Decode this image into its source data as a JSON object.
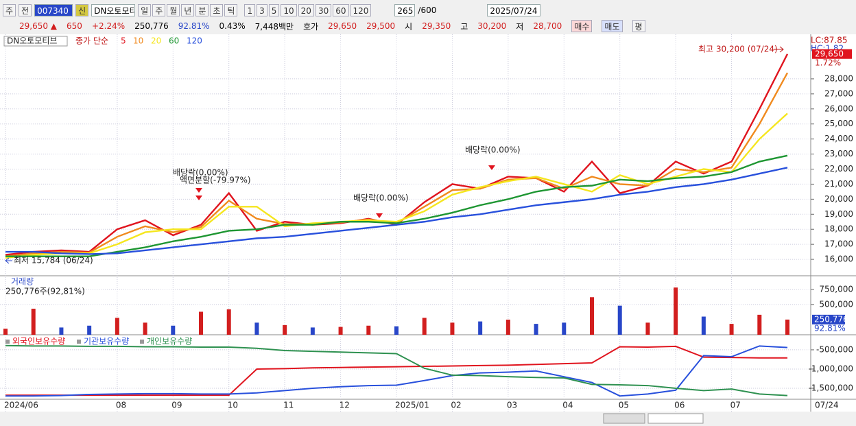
{
  "toolbar": {
    "market": "주",
    "range": "전",
    "code": "007340",
    "credit": "신",
    "name": "DN오토모티",
    "periods": [
      "일",
      "주",
      "월",
      "년",
      "분",
      "초",
      "틱"
    ],
    "intervals": [
      "1",
      "3",
      "5",
      "10",
      "20",
      "30",
      "60",
      "120"
    ],
    "count": "265",
    "max": "/600",
    "date": "2025/07/24"
  },
  "info": {
    "price": "29,650 ▲",
    "change": "650",
    "rate": "+2.24%",
    "volume": "250,776",
    "vol_ratio": "92.81%",
    "turnover": "0.43%",
    "amount": "7,448백만",
    "quote_label": "호가",
    "ask": "29,650",
    "bid": "29,500",
    "open_label": "시",
    "open": "29,350",
    "high_label": "고",
    "high": "30,200",
    "low_label": "저",
    "low": "28,700",
    "buy": "매수",
    "sell": "매도",
    "avg": "평"
  },
  "chart_data": [
    {
      "type": "line",
      "title": "DN오토모티브",
      "legend_title": "종가 단순",
      "categories": [
        "2024/06",
        null,
        null,
        null,
        "08",
        null,
        "09",
        null,
        "10",
        null,
        "11",
        null,
        "12",
        null,
        "2025/01",
        null,
        "02",
        null,
        "03",
        null,
        "04",
        null,
        "05",
        null,
        "06",
        null,
        "07",
        null,
        null
      ],
      "end_label": "07/24",
      "series": [
        {
          "name": "5",
          "color": "#e0141e",
          "values": [
            16300,
            16500,
            16600,
            16500,
            18000,
            18600,
            17600,
            18300,
            20400,
            17900,
            18500,
            18300,
            18400,
            18700,
            18300,
            19800,
            21000,
            20700,
            21500,
            21400,
            20500,
            22500,
            20400,
            20900,
            22500,
            21700,
            22500,
            26000,
            29650
          ]
        },
        {
          "name": "10",
          "color": "#f08a1e",
          "values": [
            16200,
            16400,
            16500,
            16450,
            17500,
            18200,
            17800,
            18150,
            19900,
            18700,
            18350,
            18350,
            18450,
            18650,
            18400,
            19500,
            20600,
            20700,
            21300,
            21400,
            20700,
            21500,
            21000,
            20900,
            22000,
            21800,
            22100,
            25000,
            28400
          ]
        },
        {
          "name": "20",
          "color": "#f5e61e",
          "values": [
            16100,
            16300,
            16400,
            16400,
            17000,
            17800,
            18000,
            18000,
            19500,
            19500,
            18200,
            18400,
            18500,
            18600,
            18500,
            19200,
            20300,
            20800,
            21200,
            21500,
            21000,
            20500,
            21600,
            21000,
            21500,
            22000,
            21800,
            24000,
            25700
          ]
        },
        {
          "name": "60",
          "color": "#1e9632",
          "values": [
            16200,
            16200,
            16200,
            16200,
            16500,
            16800,
            17200,
            17500,
            17900,
            18000,
            18300,
            18300,
            18500,
            18500,
            18400,
            18700,
            19100,
            19600,
            20000,
            20500,
            20800,
            20900,
            21300,
            21200,
            21400,
            21500,
            21800,
            22500,
            22900
          ]
        },
        {
          "name": "120",
          "color": "#2850dc",
          "values": [
            16500,
            16500,
            16400,
            16350,
            16400,
            16600,
            16800,
            17000,
            17200,
            17400,
            17500,
            17700,
            17900,
            18100,
            18300,
            18500,
            18800,
            19000,
            19300,
            19600,
            19800,
            20000,
            20300,
            20500,
            20800,
            21000,
            21300,
            21700,
            22100
          ]
        }
      ],
      "ylim": [
        15000,
        30870
      ],
      "yticks": [
        {
          "value": 16000,
          "label": "16,000"
        },
        {
          "value": 17000,
          "label": "17,000"
        },
        {
          "value": 18000,
          "label": "18,000"
        },
        {
          "value": 19000,
          "label": "19,000"
        },
        {
          "value": 20000,
          "label": "20,000"
        },
        {
          "value": 21000,
          "label": "21,000"
        },
        {
          "value": 22000,
          "label": "22,000"
        },
        {
          "value": 23000,
          "label": "23,000"
        },
        {
          "value": 24000,
          "label": "24,000"
        },
        {
          "value": 25000,
          "label": "25,000"
        },
        {
          "value": 26000,
          "label": "26,000"
        },
        {
          "value": 27000,
          "label": "27,000"
        },
        {
          "value": 28000,
          "label": "28,000"
        }
      ],
      "grid": true,
      "last_label": "29,650",
      "change_label": "1.72%",
      "lc_label": "LC:87.85",
      "hc_label": "HC:1.82",
      "high_label": "최고 30,200 (07/24)",
      "low_label": "최저 15,784 (06/24)",
      "annotations": [
        "배당락(0.00%)",
        "액면분할(-79.97%)",
        "배당락(0.00%)",
        "배당락(0.00%)"
      ]
    },
    {
      "type": "bar",
      "title": "거래량",
      "subtitle": "250,776주(92,81%)",
      "values": [
        100000,
        430000,
        120000,
        150000,
        280000,
        200000,
        150000,
        380000,
        420000,
        200000,
        160000,
        120000,
        130000,
        150000,
        140000,
        280000,
        200000,
        220000,
        250000,
        180000,
        200000,
        620000,
        480000,
        200000,
        780000,
        300000,
        180000,
        330000,
        250776
      ],
      "colors": [
        "#d21e1e",
        "#d21e1e",
        "#2846c8",
        "#2846c8",
        "#d21e1e",
        "#d21e1e",
        "#2846c8",
        "#d21e1e",
        "#d21e1e",
        "#2846c8",
        "#d21e1e",
        "#2846c8",
        "#d21e1e",
        "#d21e1e",
        "#2846c8",
        "#d21e1e",
        "#d21e1e",
        "#2846c8",
        "#d21e1e",
        "#2846c8",
        "#2846c8",
        "#d21e1e",
        "#2846c8",
        "#d21e1e",
        "#d21e1e",
        "#2846c8",
        "#d21e1e",
        "#d21e1e",
        "#d21e1e"
      ],
      "ylim": [
        0,
        940000
      ],
      "yticks": [
        {
          "value": 500000,
          "label": "500,000"
        },
        {
          "value": 750000,
          "label": "750,000"
        }
      ],
      "last_label": "250,776",
      "ratio_label": "92.81%"
    },
    {
      "type": "line",
      "series": [
        {
          "name": "외국인보유수량",
          "color": "#e0141e",
          "values": [
            -1680000,
            -1680000,
            -1680000,
            -1680000,
            -1680000,
            -1680000,
            -1680000,
            -1680000,
            -1680000,
            -1000000,
            -990000,
            -970000,
            -960000,
            -950000,
            -940000,
            -930000,
            -920000,
            -910000,
            -900000,
            -880000,
            -860000,
            -840000,
            -420000,
            -430000,
            -410000,
            -690000,
            -700000,
            -710000,
            -710000
          ]
        },
        {
          "name": "기관보유수량",
          "color": "#2850dc",
          "values": [
            -1700000,
            -1700000,
            -1690000,
            -1660000,
            -1650000,
            -1640000,
            -1640000,
            -1650000,
            -1650000,
            -1620000,
            -1560000,
            -1500000,
            -1460000,
            -1430000,
            -1420000,
            -1300000,
            -1170000,
            -1100000,
            -1080000,
            -1050000,
            -1200000,
            -1350000,
            -1700000,
            -1650000,
            -1550000,
            -650000,
            -680000,
            -400000,
            -440000
          ]
        },
        {
          "name": "개인보유수량",
          "color": "#2e9150",
          "values": [
            -390000,
            -400000,
            -400000,
            -410000,
            -410000,
            -420000,
            -420000,
            -430000,
            -430000,
            -460000,
            -520000,
            -540000,
            -560000,
            -580000,
            -600000,
            -980000,
            -1160000,
            -1170000,
            -1200000,
            -1220000,
            -1230000,
            -1400000,
            -1410000,
            -1430000,
            -1500000,
            -1560000,
            -1520000,
            -1650000,
            -1690000
          ]
        }
      ],
      "ylim": [
        -1750000,
        -180000
      ],
      "yticks": [
        {
          "value": -500000,
          "label": "-500,000"
        },
        {
          "value": -1000000,
          "label": "-1,000,000"
        },
        {
          "value": -1500000,
          "label": "-1,500,000"
        }
      ]
    }
  ]
}
